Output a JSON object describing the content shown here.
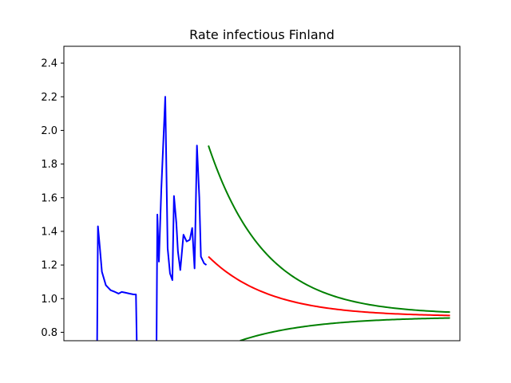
{
  "chart_data": {
    "type": "line",
    "title": "Rate infectious Finland",
    "xlabel": "",
    "ylabel": "",
    "ylim": [
      0.75,
      2.5
    ],
    "xlim": [
      0,
      100
    ],
    "yticks": [
      "0.8",
      "1.0",
      "1.2",
      "1.4",
      "1.6",
      "1.8",
      "2.0",
      "2.2",
      "2.4"
    ],
    "grid": false,
    "colors": {
      "observed": "#0000ff",
      "projection": "#ff0000",
      "bound": "#008000"
    },
    "series": [
      {
        "id": "observed",
        "color": "#0000ff",
        "segments": [
          [
            [
              8.4,
              0.75
            ],
            [
              8.6,
              1.43
            ],
            [
              9.1,
              1.3
            ],
            [
              9.6,
              1.16
            ],
            [
              10.6,
              1.08
            ],
            [
              11.8,
              1.05
            ],
            [
              12.9,
              1.04
            ],
            [
              13.8,
              1.03
            ],
            [
              14.6,
              1.04
            ],
            [
              15.6,
              1.035
            ],
            [
              16.6,
              1.03
            ],
            [
              17.6,
              1.025
            ],
            [
              18.2,
              1.025
            ],
            [
              18.4,
              0.75
            ]
          ],
          [
            [
              23.4,
              0.75
            ],
            [
              23.6,
              1.5
            ],
            [
              24.0,
              1.22
            ],
            [
              24.6,
              1.65
            ],
            [
              25.6,
              2.2
            ],
            [
              26.2,
              1.3
            ],
            [
              26.8,
              1.15
            ],
            [
              27.4,
              1.11
            ],
            [
              27.8,
              1.61
            ],
            [
              28.4,
              1.45
            ],
            [
              28.8,
              1.28
            ],
            [
              29.4,
              1.17
            ],
            [
              30.2,
              1.38
            ],
            [
              31.0,
              1.34
            ],
            [
              31.8,
              1.35
            ],
            [
              32.4,
              1.42
            ],
            [
              33.0,
              1.18
            ],
            [
              33.6,
              1.91
            ],
            [
              34.2,
              1.6
            ],
            [
              34.6,
              1.25
            ],
            [
              35.4,
              1.21
            ],
            [
              36.0,
              1.2
            ]
          ]
        ]
      },
      {
        "id": "projection",
        "color": "#ff0000",
        "curve": {
          "x_start": 36.5,
          "x_end": 97.5,
          "y_start": 1.25,
          "y_end": 0.9,
          "decay": 0.065
        }
      },
      {
        "id": "upper",
        "color": "#008000",
        "curve": {
          "x_start": 36.5,
          "x_end": 97.5,
          "y_start": 1.91,
          "y_end": 0.92,
          "decay": 0.07
        }
      },
      {
        "id": "lower",
        "color": "#008000",
        "curve": {
          "x_start": 44.5,
          "x_end": 97.5,
          "y_start": 0.75,
          "y_end": 0.885,
          "decay": 0.055
        }
      }
    ]
  }
}
